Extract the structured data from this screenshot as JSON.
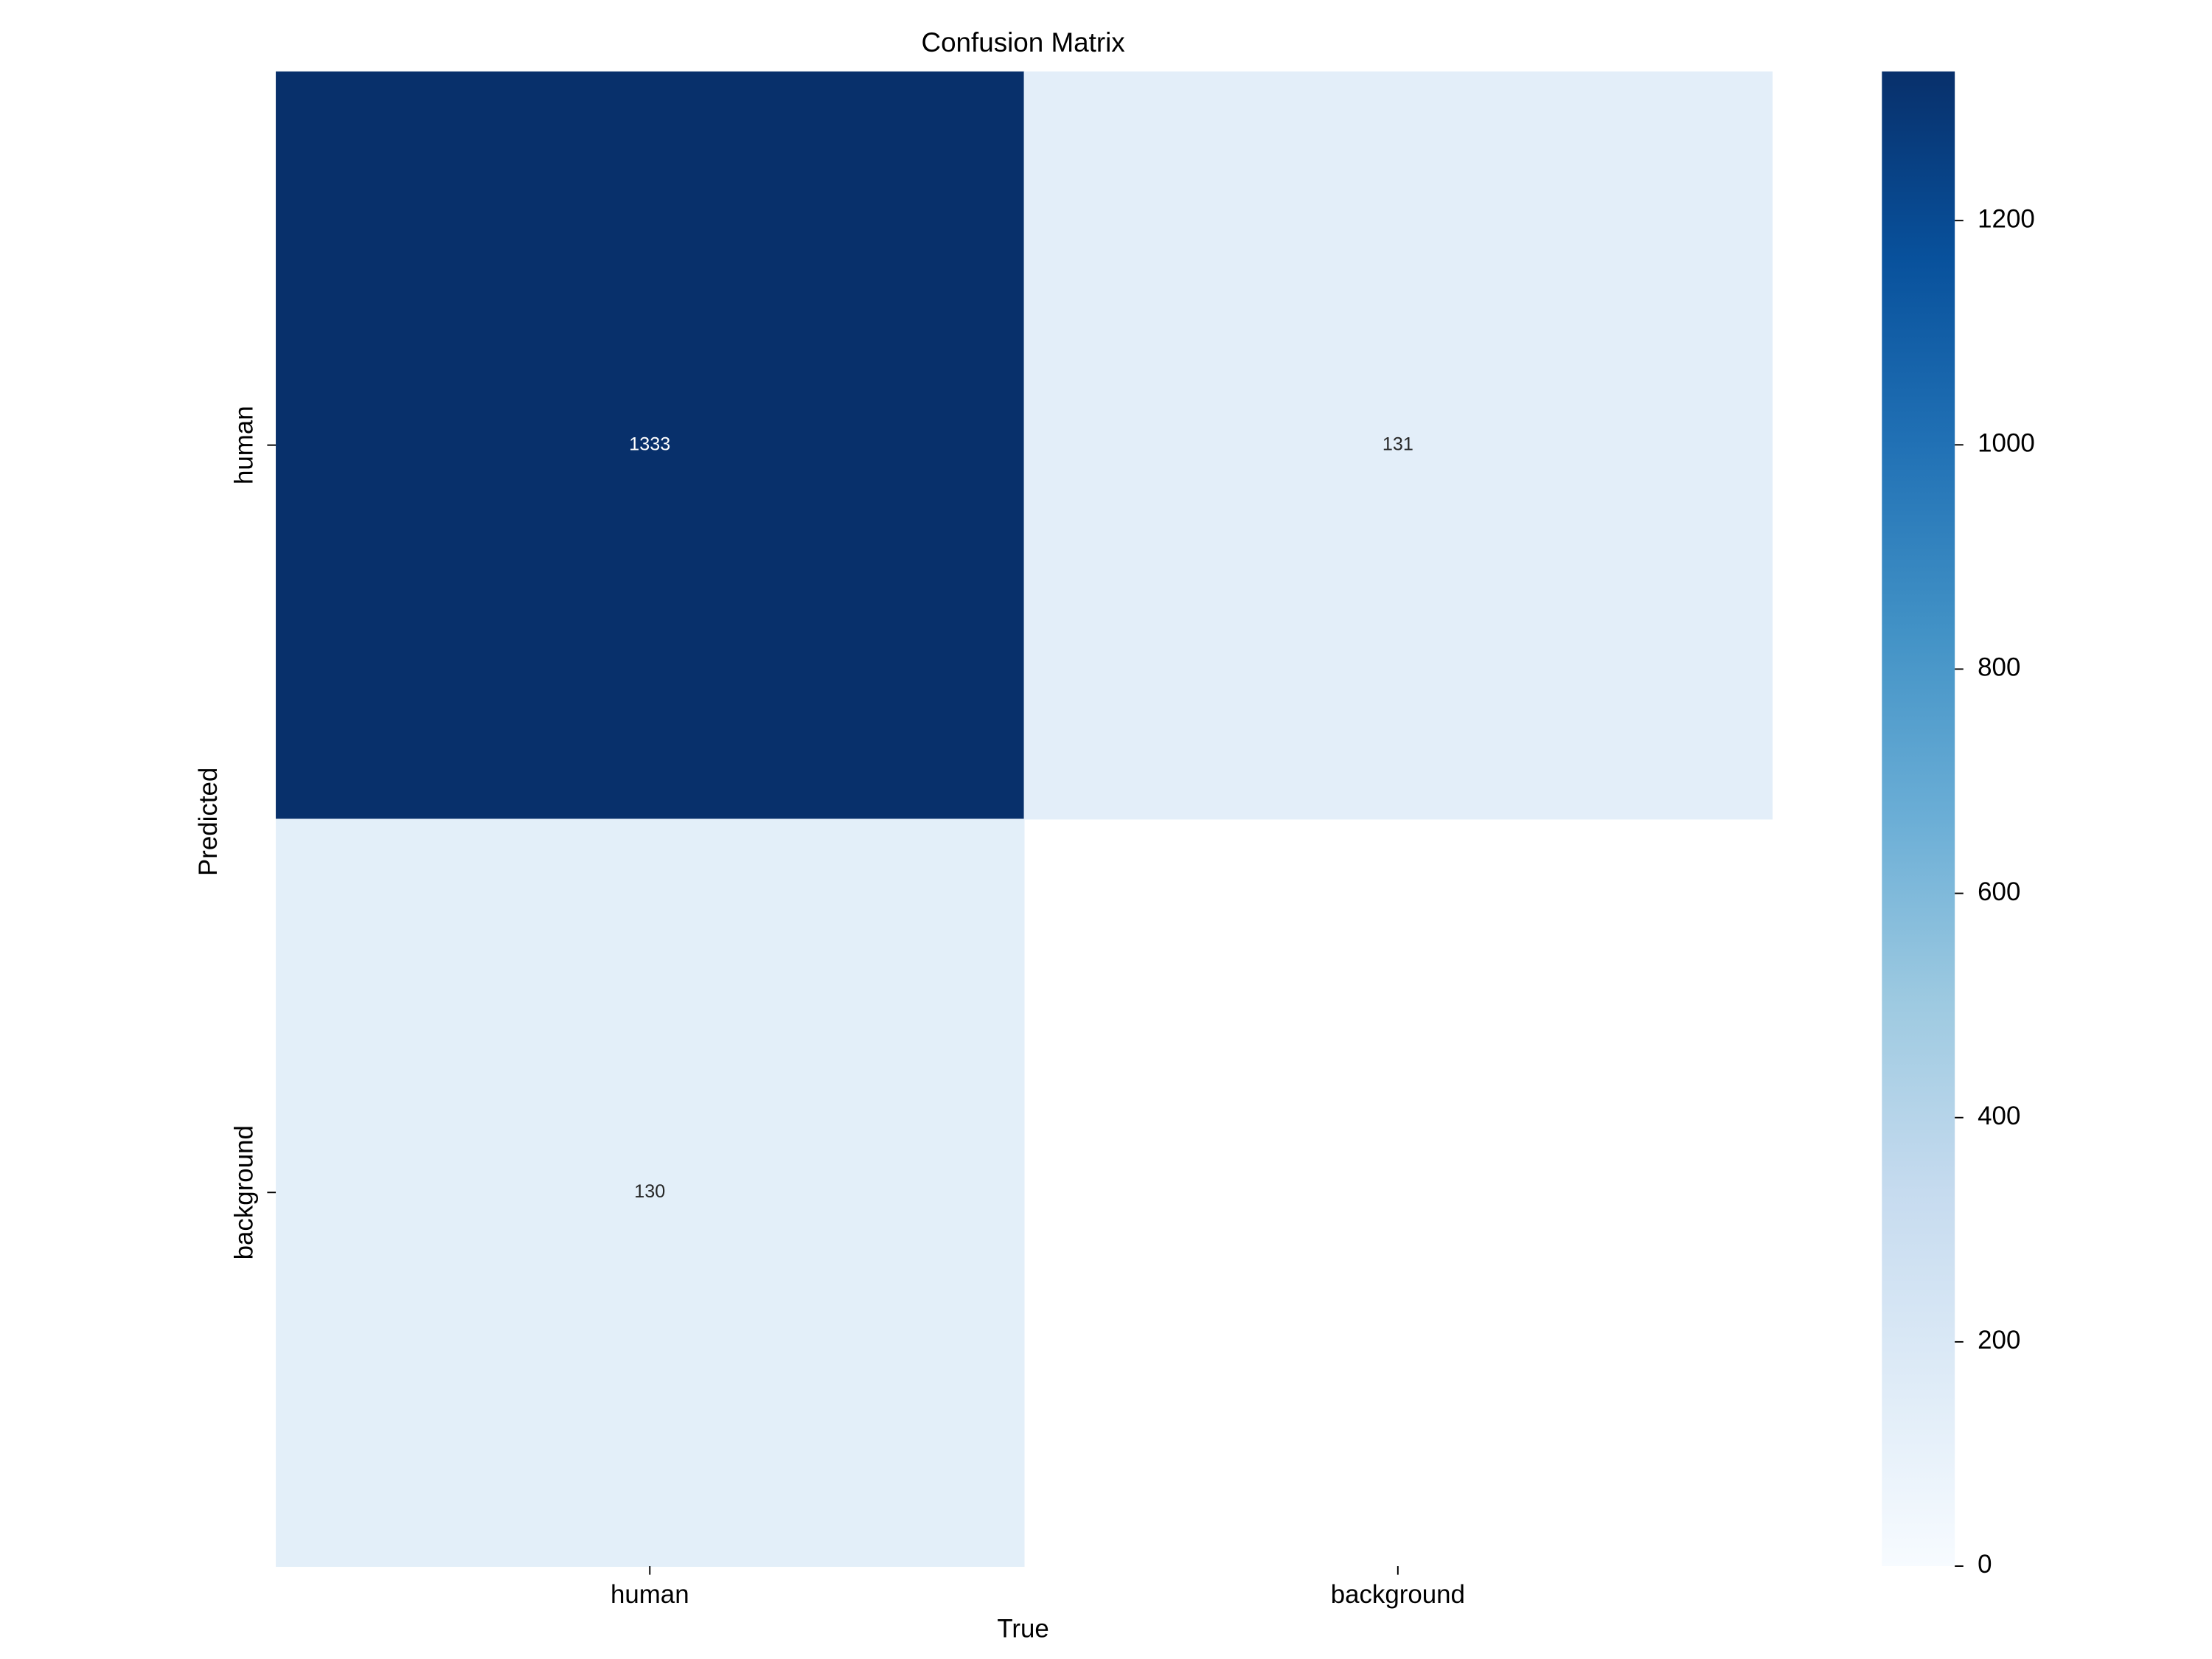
{
  "chart_data": {
    "type": "heatmap",
    "title": "Confusion Matrix",
    "xlabel": "True",
    "ylabel": "Predicted",
    "x_categories": [
      "human",
      "background"
    ],
    "y_categories": [
      "human",
      "background"
    ],
    "values": [
      [
        1333,
        131
      ],
      [
        130,
        null
      ]
    ],
    "colormap": "Blues",
    "clim": [
      0,
      1333
    ],
    "colorbar_ticks": [
      0,
      200,
      400,
      600,
      800,
      1000,
      1200
    ]
  }
}
